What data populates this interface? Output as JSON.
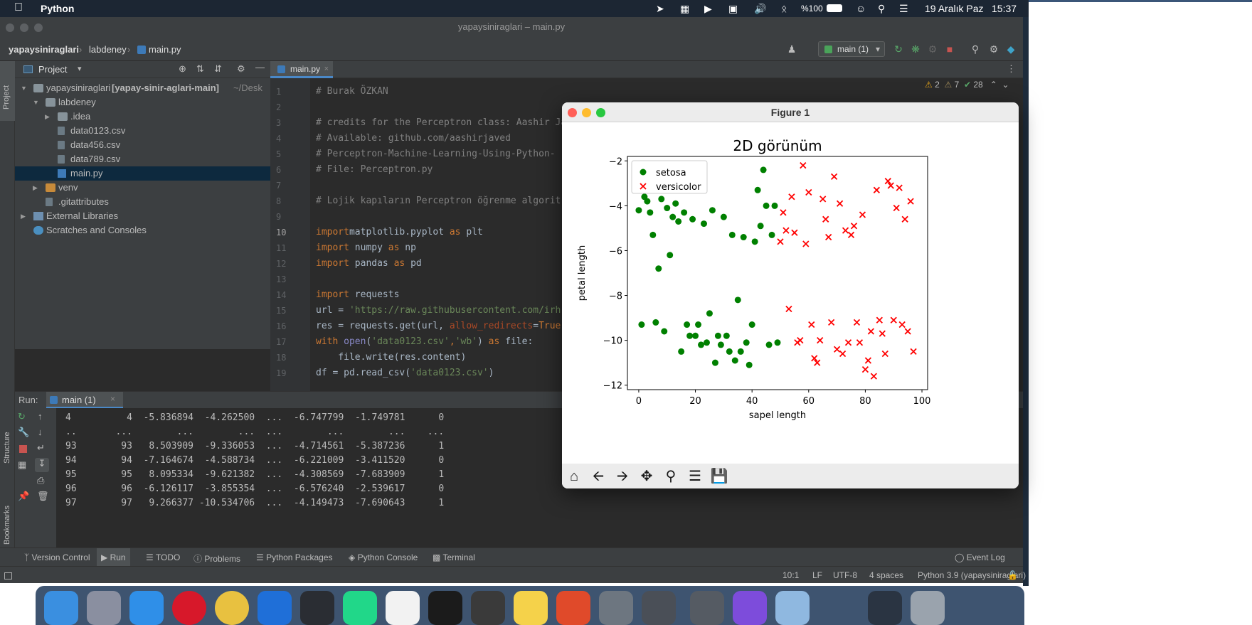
{
  "menubar": {
    "app_name": "Python",
    "battery": "%100",
    "date": "19 Aralık Paz",
    "time": "15:37"
  },
  "window": {
    "title": "yapaysiniraglari – main.py"
  },
  "breadcrumb": [
    "yapaysiniraglari",
    "labdeney",
    "main.py"
  ],
  "run_config": "main (1)",
  "project_panel": {
    "title": "Project",
    "tree": [
      {
        "label": "yapaysiniraglari",
        "extra": "[yapay-sinir-aglari-main]",
        "path": "~/Desk",
        "type": "folder",
        "open": true,
        "depth": 0
      },
      {
        "label": "labdeney",
        "type": "folder",
        "open": true,
        "depth": 1
      },
      {
        "label": ".idea",
        "type": "folder",
        "open": false,
        "depth": 2
      },
      {
        "label": "data0123.csv",
        "type": "file",
        "depth": 2
      },
      {
        "label": "data456.csv",
        "type": "file",
        "depth": 2
      },
      {
        "label": "data789.csv",
        "type": "file",
        "depth": 2
      },
      {
        "label": "main.py",
        "type": "py",
        "depth": 2,
        "selected": true
      },
      {
        "label": "venv",
        "type": "folder-orange",
        "open": false,
        "depth": 1
      },
      {
        "label": ".gitattributes",
        "type": "file",
        "depth": 1
      },
      {
        "label": "External Libraries",
        "type": "lib",
        "open": false,
        "depth": 0
      },
      {
        "label": "Scratches and Consoles",
        "type": "scratch",
        "depth": 0
      }
    ]
  },
  "editor": {
    "tab": "main.py",
    "current_line": 10,
    "inspections": {
      "warnings": "2",
      "weak": "7",
      "ok": "28"
    },
    "lines": [
      [
        [
          "cm",
          "# Burak ÖZKAN"
        ]
      ],
      [],
      [
        [
          "cm",
          "# credits for the Perceptron class: Aashir Ja"
        ]
      ],
      [
        [
          "cm",
          "# Available: github.com/aashirjaved"
        ]
      ],
      [
        [
          "cm",
          "# Perceptron-Machine-Learning-Using-Python-"
        ]
      ],
      [
        [
          "cm",
          "# File: Perceptron.py"
        ]
      ],
      [],
      [
        [
          "cm",
          "# Lojik kapıların Perceptron öğrenme algorit"
        ]
      ],
      [],
      [
        [
          "kw",
          "import"
        ],
        [
          "",
          "matplotlib.pyplot "
        ],
        [
          "kw",
          "as"
        ],
        [
          "",
          " plt"
        ]
      ],
      [
        [
          "kw",
          "import"
        ],
        [
          "",
          " numpy "
        ],
        [
          "kw",
          "as"
        ],
        [
          "",
          " np"
        ]
      ],
      [
        [
          "kw",
          "import"
        ],
        [
          "",
          " pandas "
        ],
        [
          "kw",
          "as"
        ],
        [
          "",
          " pd"
        ]
      ],
      [],
      [
        [
          "kw",
          "import"
        ],
        [
          "",
          " requests"
        ]
      ],
      [
        [
          "",
          "url = "
        ],
        [
          "st",
          "'https://raw.githubusercontent.com/irh"
        ]
      ],
      [
        [
          "",
          "res = requests.get(url, "
        ],
        [
          "pm",
          "allow_redirects"
        ],
        [
          "",
          "="
        ],
        [
          "kw",
          "True"
        ],
        [
          "",
          ")"
        ]
      ],
      [
        [
          "kw",
          "with"
        ],
        [
          "bi",
          " open"
        ],
        [
          "",
          "("
        ],
        [
          "st",
          "'data0123.csv'"
        ],
        [
          "kw",
          ","
        ],
        [
          "st",
          "'wb'"
        ],
        [
          "",
          ") "
        ],
        [
          "kw",
          "as"
        ],
        [
          "",
          " file:"
        ]
      ],
      [
        [
          "",
          "    file.write(res.content)"
        ]
      ],
      [
        [
          "",
          "df = pd.read_csv("
        ],
        [
          "st",
          "'data0123.csv'"
        ],
        [
          "",
          ")"
        ]
      ]
    ]
  },
  "run_panel": {
    "label": "Run:",
    "tab": "main (1)",
    "rows": [
      "4          4  -5.836894  -4.262500  ...  -6.747799  -1.749781      0",
      "..       ...        ...        ...  ...        ...        ...    ...",
      "93        93   8.503909  -9.336053  ...  -4.714561  -5.387236      1",
      "94        94  -7.164674  -4.588734  ...  -6.221009  -3.411520      0",
      "95        95   8.095334  -9.621382  ...  -4.308569  -7.683909      1",
      "96        96  -6.126117  -3.855354  ...  -6.576240  -2.539617      0",
      "97        97   9.266377 -10.534706  ...  -4.149473  -7.690643      1"
    ]
  },
  "bottom_tabs": [
    "Version Control",
    "Run",
    "TODO",
    "Problems",
    "Python Packages",
    "Python Console",
    "Terminal"
  ],
  "event_log": "Event Log",
  "status": {
    "position": "10:1",
    "line_sep": "LF",
    "encoding": "UTF-8",
    "indent": "4 spaces",
    "interpreter": "Python 3.9 (yapaysiniraglari)"
  },
  "side_labels": {
    "project": "Project",
    "structure": "Structure",
    "bookmarks": "Bookmarks"
  },
  "figure": {
    "window_title": "Figure 1",
    "toolbar_icons": [
      "home-icon",
      "back-icon",
      "forward-icon",
      "pan-icon",
      "zoom-icon",
      "configure-icon",
      "save-icon"
    ]
  },
  "chart_data": {
    "type": "scatter",
    "title": "2D görünüm",
    "xlabel": "sapel length",
    "ylabel": "petal length",
    "xlim": [
      -4,
      102
    ],
    "ylim": [
      -12.2,
      -1.8
    ],
    "xticks": [
      "0",
      "20",
      "40",
      "60",
      "80",
      "100"
    ],
    "yticks": [
      "−2",
      "−4",
      "−6",
      "−8",
      "−10",
      "−12"
    ],
    "xtick_values": [
      0,
      20,
      40,
      60,
      80,
      100
    ],
    "ytick_values": [
      -2,
      -4,
      -6,
      -8,
      -10,
      -12
    ],
    "legend_position": "upper-left",
    "series": [
      {
        "name": "setosa",
        "marker": "circle",
        "color": "#008000",
        "points": [
          [
            0,
            -4.2
          ],
          [
            1,
            -9.3
          ],
          [
            2,
            -3.6
          ],
          [
            3,
            -3.8
          ],
          [
            4,
            -4.3
          ],
          [
            5,
            -5.3
          ],
          [
            6,
            -9.2
          ],
          [
            7,
            -6.8
          ],
          [
            8,
            -3.7
          ],
          [
            9,
            -9.6
          ],
          [
            10,
            -4.1
          ],
          [
            11,
            -6.2
          ],
          [
            12,
            -4.5
          ],
          [
            13,
            -3.9
          ],
          [
            14,
            -4.7
          ],
          [
            15,
            -10.5
          ],
          [
            16,
            -4.3
          ],
          [
            17,
            -9.3
          ],
          [
            18,
            -9.8
          ],
          [
            19,
            -4.6
          ],
          [
            20,
            -9.8
          ],
          [
            21,
            -9.3
          ],
          [
            22,
            -10.2
          ],
          [
            23,
            -4.8
          ],
          [
            24,
            -10.1
          ],
          [
            25,
            -8.8
          ],
          [
            26,
            -4.2
          ],
          [
            27,
            -11
          ],
          [
            28,
            -9.8
          ],
          [
            29,
            -10.2
          ],
          [
            30,
            -4.5
          ],
          [
            31,
            -9.8
          ],
          [
            32,
            -10.5
          ],
          [
            33,
            -5.3
          ],
          [
            34,
            -10.9
          ],
          [
            35,
            -8.2
          ],
          [
            36,
            -10.5
          ],
          [
            37,
            -5.4
          ],
          [
            38,
            -10.1
          ],
          [
            39,
            -11.1
          ],
          [
            40,
            -9.3
          ],
          [
            41,
            -5.6
          ],
          [
            42,
            -3.3
          ],
          [
            43,
            -4.9
          ],
          [
            44,
            -2.4
          ],
          [
            45,
            -4
          ],
          [
            46,
            -10.2
          ],
          [
            47,
            -5.3
          ],
          [
            48,
            -4
          ],
          [
            49,
            -10.1
          ]
        ]
      },
      {
        "name": "versicolor",
        "marker": "x",
        "color": "#ff0000",
        "points": [
          [
            50,
            -5.6
          ],
          [
            51,
            -4.3
          ],
          [
            52,
            -5.1
          ],
          [
            53,
            -8.6
          ],
          [
            54,
            -3.6
          ],
          [
            55,
            -5.2
          ],
          [
            56,
            -10.1
          ],
          [
            57,
            -10
          ],
          [
            58,
            -2.2
          ],
          [
            59,
            -5.7
          ],
          [
            60,
            -3.4
          ],
          [
            61,
            -9.3
          ],
          [
            62,
            -10.8
          ],
          [
            63,
            -11
          ],
          [
            64,
            -10
          ],
          [
            65,
            -3.7
          ],
          [
            66,
            -4.6
          ],
          [
            67,
            -5.4
          ],
          [
            68,
            -9.2
          ],
          [
            69,
            -2.7
          ],
          [
            70,
            -10.4
          ],
          [
            71,
            -3.9
          ],
          [
            72,
            -10.6
          ],
          [
            73,
            -5.1
          ],
          [
            74,
            -10.1
          ],
          [
            75,
            -5.3
          ],
          [
            76,
            -4.9
          ],
          [
            77,
            -9.2
          ],
          [
            78,
            -10.1
          ],
          [
            79,
            -4.4
          ],
          [
            80,
            -11.3
          ],
          [
            81,
            -10.9
          ],
          [
            82,
            -9.6
          ],
          [
            83,
            -11.6
          ],
          [
            84,
            -3.3
          ],
          [
            85,
            -9.1
          ],
          [
            86,
            -9.7
          ],
          [
            87,
            -10.6
          ],
          [
            88,
            -2.9
          ],
          [
            89,
            -3.1
          ],
          [
            90,
            -9.1
          ],
          [
            91,
            -4.1
          ],
          [
            92,
            -3.2
          ],
          [
            93,
            -9.3
          ],
          [
            94,
            -4.6
          ],
          [
            95,
            -9.6
          ],
          [
            96,
            -3.8
          ],
          [
            97,
            -10.5
          ]
        ]
      }
    ]
  }
}
